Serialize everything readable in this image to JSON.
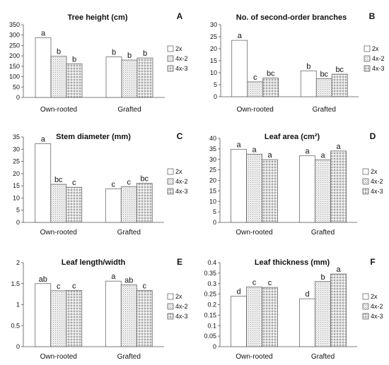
{
  "figure": {
    "series": [
      "2x",
      "4x-2",
      "4x-3"
    ],
    "categories": [
      "Own-rooted",
      "Grafted"
    ],
    "fills": [
      "#ffffff",
      "pattern-fine-dots",
      "pattern-grid-dots"
    ]
  },
  "chart_data": [
    {
      "type": "bar",
      "panel": "A",
      "title": "Tree height (cm)",
      "categories": [
        "Own-rooted",
        "Grafted"
      ],
      "ylim": [
        0,
        350
      ],
      "yticks": [
        0,
        50,
        100,
        150,
        200,
        250,
        300,
        350
      ],
      "series": [
        {
          "name": "2x",
          "values": [
            287,
            195
          ],
          "labels": [
            "a",
            "b"
          ]
        },
        {
          "name": "4x-2",
          "values": [
            198,
            180
          ],
          "labels": [
            "b",
            "b"
          ]
        },
        {
          "name": "4x-3",
          "values": [
            162,
            190
          ],
          "labels": [
            "b",
            "b"
          ]
        }
      ]
    },
    {
      "type": "bar",
      "panel": "B",
      "title": "No. of  second-order branches",
      "categories": [
        "Own-rooted",
        "Grafted"
      ],
      "ylim": [
        0,
        30
      ],
      "yticks": [
        0,
        5,
        10,
        15,
        20,
        25,
        30
      ],
      "series": [
        {
          "name": "2x",
          "values": [
            23.5,
            10.8
          ],
          "labels": [
            "a",
            "b"
          ]
        },
        {
          "name": "4x-2",
          "values": [
            6.2,
            7.5
          ],
          "labels": [
            "c",
            "bc"
          ]
        },
        {
          "name": "4x-3",
          "values": [
            7.8,
            9.4
          ],
          "labels": [
            "bc",
            "bc"
          ]
        }
      ]
    },
    {
      "type": "bar",
      "panel": "C",
      "title": "Stem diameter (mm)",
      "categories": [
        "Own-rooted",
        "Grafted"
      ],
      "ylim": [
        0,
        35
      ],
      "yticks": [
        0,
        5,
        10,
        15,
        20,
        25,
        30,
        35
      ],
      "series": [
        {
          "name": "2x",
          "values": [
            32.2,
            13.7
          ],
          "labels": [
            "a",
            "c"
          ]
        },
        {
          "name": "4x-2",
          "values": [
            15.6,
            14.6
          ],
          "labels": [
            "bc",
            "c"
          ]
        },
        {
          "name": "4x-3",
          "values": [
            14.4,
            16.0
          ],
          "labels": [
            "c",
            "bc"
          ]
        }
      ]
    },
    {
      "type": "bar",
      "panel": "D",
      "title": "Leaf area (cm²)",
      "categories": [
        "Own-rooted",
        "Grafted"
      ],
      "ylim": [
        0,
        40
      ],
      "yticks": [
        0,
        5,
        10,
        15,
        20,
        25,
        30,
        35,
        40
      ],
      "series": [
        {
          "name": "2x",
          "values": [
            34.8,
            31.7
          ],
          "labels": [
            "a",
            "a"
          ]
        },
        {
          "name": "4x-2",
          "values": [
            32.5,
            29.8
          ],
          "labels": [
            "a",
            "a"
          ]
        },
        {
          "name": "4x-3",
          "values": [
            29.9,
            34.0
          ],
          "labels": [
            "a",
            "a"
          ]
        }
      ]
    },
    {
      "type": "bar",
      "panel": "E",
      "title": "Leaf length/width",
      "categories": [
        "Own-rooted",
        "Grafted"
      ],
      "ylim": [
        0,
        2
      ],
      "yticks": [
        0,
        0.5,
        1,
        1.5,
        2
      ],
      "series": [
        {
          "name": "2x",
          "values": [
            1.5,
            1.56
          ],
          "labels": [
            "ab",
            "a"
          ]
        },
        {
          "name": "4x-2",
          "values": [
            1.33,
            1.47
          ],
          "labels": [
            "c",
            "ab"
          ]
        },
        {
          "name": "4x-3",
          "values": [
            1.34,
            1.34
          ],
          "labels": [
            "c",
            "c"
          ]
        }
      ]
    },
    {
      "type": "bar",
      "panel": "F",
      "title": "Leaf thickness (mm)",
      "categories": [
        "Own-rooted",
        "Grafted"
      ],
      "ylim": [
        0,
        0.4
      ],
      "yticks": [
        0,
        0.05,
        0.1,
        0.15,
        0.2,
        0.25,
        0.3,
        0.35,
        0.4
      ],
      "series": [
        {
          "name": "2x",
          "values": [
            0.24,
            0.228
          ],
          "labels": [
            "d",
            "d"
          ]
        },
        {
          "name": "4x-2",
          "values": [
            0.284,
            0.31
          ],
          "labels": [
            "c",
            "b"
          ]
        },
        {
          "name": "4x-3",
          "values": [
            0.282,
            0.346
          ],
          "labels": [
            "c",
            "a"
          ]
        }
      ]
    }
  ]
}
